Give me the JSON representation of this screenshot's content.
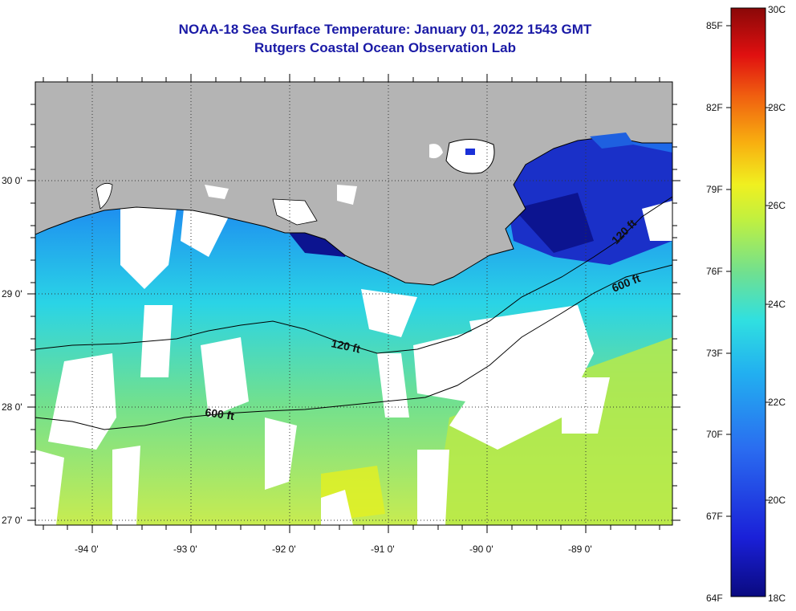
{
  "title": {
    "line1": "NOAA-18 Sea Surface Temperature:  January 01, 2022 1543 GMT",
    "line2": "Rutgers Coastal Ocean Observation Lab"
  },
  "map": {
    "longitude_labels": [
      "-94 0'",
      "-93 0'",
      "-92 0'",
      "-91 0'",
      "-90 0'",
      "-89 0'"
    ],
    "latitude_labels": [
      "30 0'",
      "29 0'",
      "28 0'",
      "27 0'"
    ],
    "contour_labels": {
      "shelf_120_west": "120 ft",
      "shelf_120_east": "120 ft",
      "slope_600_west": "600 ft",
      "slope_600_east": "600 ft"
    },
    "colors": {
      "land": "#b4b4b4",
      "cloud": "#ffffff",
      "coastline": "#000000"
    }
  },
  "colorbar": {
    "fahrenheit_labels": [
      "85F",
      "82F",
      "79F",
      "76F",
      "73F",
      "70F",
      "67F",
      "64F"
    ],
    "celsius_labels": [
      "30C",
      "28C",
      "26C",
      "24C",
      "22C",
      "20C",
      "18C"
    ],
    "colors": [
      "#0a0a80",
      "#1a20d8",
      "#2a6cf0",
      "#22b0f0",
      "#30e0e0",
      "#70e090",
      "#c0f040",
      "#f0f020",
      "#f8b010",
      "#f06010",
      "#e01010",
      "#8a0808"
    ]
  }
}
